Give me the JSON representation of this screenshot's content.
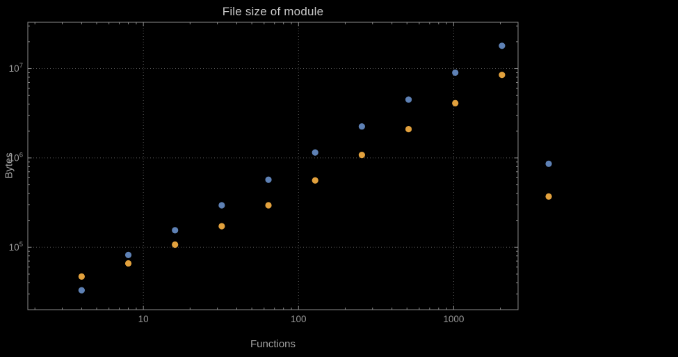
{
  "chart_data": {
    "type": "scatter",
    "title": "File size of module",
    "xlabel": "Functions",
    "ylabel": "Bytes",
    "xscale": "log",
    "yscale": "log",
    "xlim": [
      1.8,
      2600
    ],
    "ylim": [
      20000,
      33000000
    ],
    "x_ticks": [
      10,
      100,
      1000
    ],
    "x_tick_labels": [
      "10",
      "100",
      "1000"
    ],
    "y_ticks": [
      100000,
      1000000,
      10000000
    ],
    "y_tick_exponents": [
      5,
      6,
      7
    ],
    "grid": "dotted-at-major-ticks",
    "legend": "none",
    "frame": true,
    "clip_points": false,
    "x": [
      4,
      8,
      16,
      32,
      64,
      128,
      256,
      512,
      1024,
      2048,
      4096
    ],
    "series": [
      {
        "name": "blue-series",
        "color": "#5e81b5",
        "values": [
          33000,
          82000,
          155000,
          295000,
          570000,
          1150000,
          2250000,
          4500000,
          9000000,
          18000000,
          860000
        ]
      },
      {
        "name": "orange-series",
        "color": "#e2a13d",
        "values": [
          47000,
          66000,
          107000,
          172000,
          295000,
          560000,
          1080000,
          2100000,
          4100000,
          8500000,
          370000
        ]
      }
    ],
    "colors": {
      "background": "#000000",
      "frame": "#8c8c8c",
      "gridline": "#5a5a5a",
      "tick_text": "#9a9a9a",
      "axis_label_text": "#a3a3a3",
      "title_text": "#c8c8c8"
    }
  }
}
